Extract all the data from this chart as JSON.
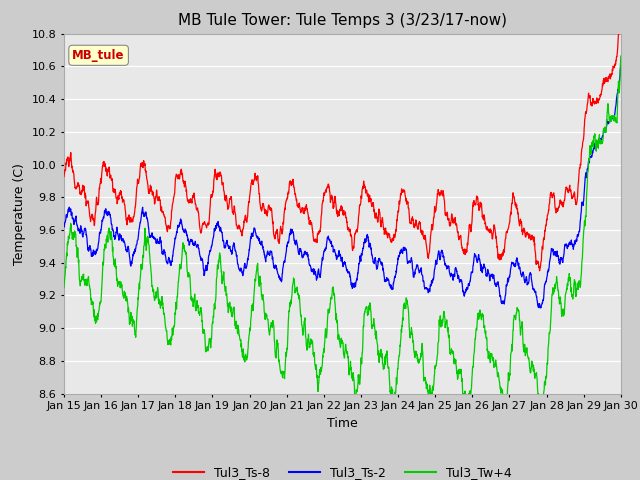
{
  "title": "MB Tule Tower: Tule Temps 3 (3/23/17-now)",
  "xlabel": "Time",
  "ylabel": "Temperature (C)",
  "ylim": [
    8.6,
    10.8
  ],
  "xlim": [
    0,
    15
  ],
  "x_tick_labels": [
    "Jan 15",
    "Jan 16",
    "Jan 17",
    "Jan 18",
    "Jan 19",
    "Jan 20",
    "Jan 21",
    "Jan 22",
    "Jan 23",
    "Jan 24",
    "Jan 25",
    "Jan 26",
    "Jan 27",
    "Jan 28",
    "Jan 29",
    "Jan 30"
  ],
  "legend_labels": [
    "Tul3_Ts-8",
    "Tul3_Ts-2",
    "Tul3_Tw+4"
  ],
  "legend_colors": [
    "#ff0000",
    "#0000ff",
    "#00cc00"
  ],
  "annotation_text": "MB_tule",
  "annotation_color": "#cc0000",
  "background_color": "#e8e8e8",
  "grid_color": "#ffffff",
  "title_fontsize": 11,
  "axis_fontsize": 9,
  "tick_fontsize": 8
}
